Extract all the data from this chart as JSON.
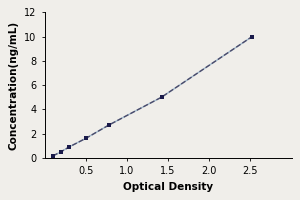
{
  "xlabel": "Optical Density",
  "ylabel": "Concentration(ng/mL)",
  "x_data": [
    0.1,
    0.2,
    0.3,
    0.5,
    0.78,
    1.42,
    2.52
  ],
  "y_data": [
    0.15,
    0.5,
    0.9,
    1.6,
    2.7,
    5.0,
    10.0
  ],
  "xlim": [
    0,
    3
  ],
  "ylim": [
    0,
    12
  ],
  "xticks": [
    0.5,
    1.0,
    1.5,
    2.0,
    2.5
  ],
  "yticks": [
    0,
    2,
    4,
    6,
    8,
    10,
    12
  ],
  "line_color": "#a0b8cc",
  "marker_color": "#1a1a4a",
  "marker": "s",
  "marker_size": 3,
  "line_style": "--",
  "line_width": 1.0,
  "bg_color": "#f0eeea",
  "tick_label_fontsize": 7,
  "axis_label_fontsize": 7.5
}
